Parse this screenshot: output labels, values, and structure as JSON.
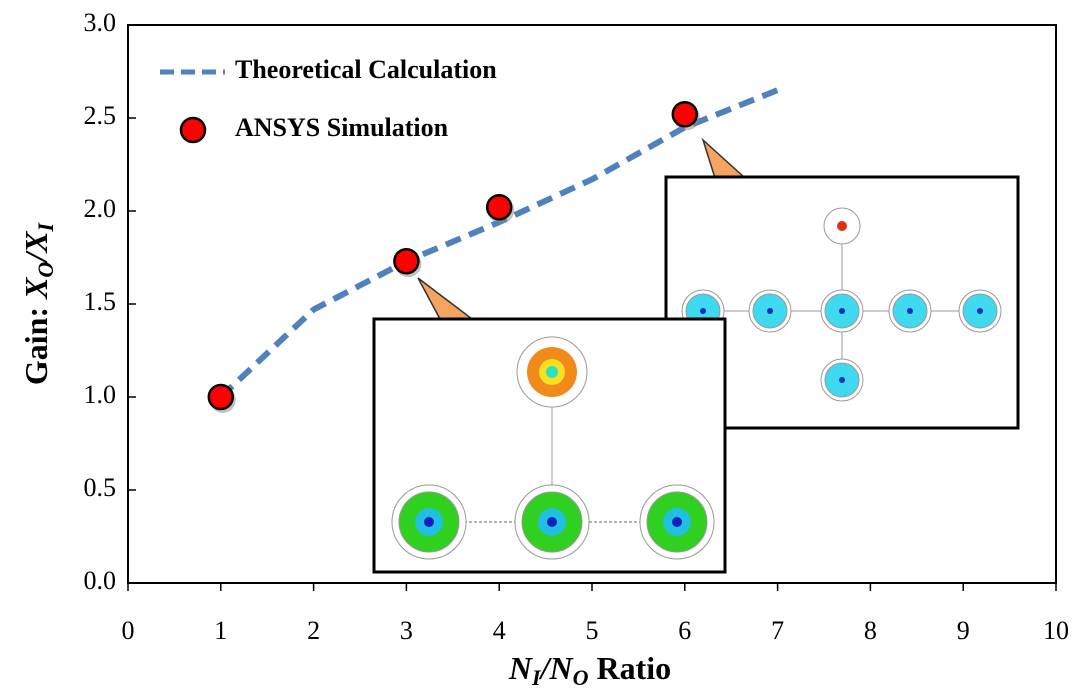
{
  "chart_data": {
    "type": "line",
    "x_label": [
      "N",
      "I",
      "/N",
      "O",
      " Ratio"
    ],
    "y_label": [
      "Gain: ",
      "X",
      "O",
      "/X",
      "I"
    ],
    "xlim": [
      0,
      10
    ],
    "ylim": [
      0,
      3
    ],
    "xticks": [
      0,
      1,
      2,
      3,
      4,
      5,
      6,
      7,
      8,
      9,
      10
    ],
    "yticks": [
      {
        "value": 0,
        "label": "0.0"
      },
      0.5,
      {
        "value": 1,
        "label": "1.0"
      },
      1.5,
      {
        "value": 2,
        "label": "2.0"
      },
      2.5,
      {
        "value": 3,
        "label": "3.0"
      }
    ],
    "series": [
      {
        "name": "Theoretical Calculation",
        "color": "#4f81bd",
        "style": "dashed",
        "x": [
          1,
          2,
          3,
          4,
          5,
          6,
          7
        ],
        "values": [
          1.0,
          1.47,
          1.73,
          1.94,
          2.17,
          2.45,
          2.65
        ]
      },
      {
        "name": "ANSYS Simulation",
        "color": "#ff0000",
        "style": "marker",
        "x": [
          1,
          3,
          4,
          6
        ],
        "values": [
          1.0,
          1.73,
          2.02,
          2.52
        ]
      }
    ]
  }
}
